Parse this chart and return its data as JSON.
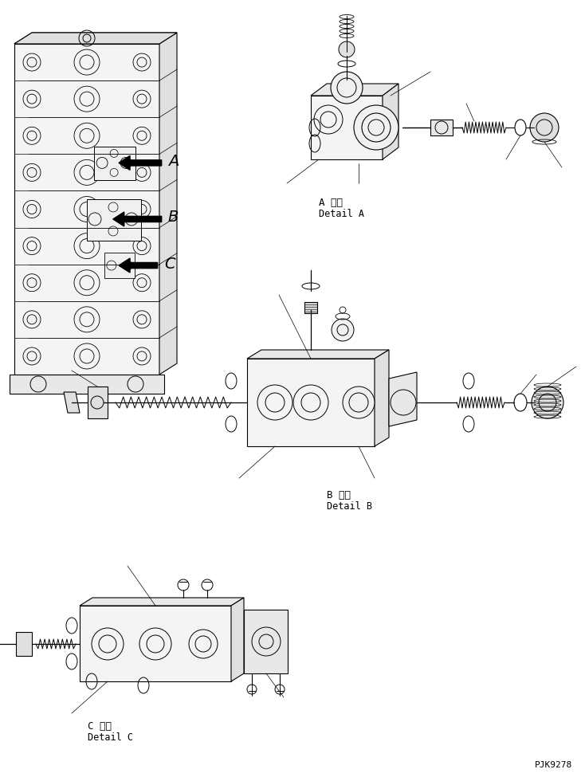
{
  "background_color": "#ffffff",
  "line_color": "#000000",
  "fig_width": 7.29,
  "fig_height": 9.8,
  "dpi": 100,
  "labels": {
    "A_detail_jp": "A 詳細",
    "A_detail_en": "Detail A",
    "B_detail_jp": "B 詳細",
    "B_detail_en": "Detail B",
    "C_detail_jp": "C 詳細",
    "C_detail_en": "Detail C",
    "part_number": "PJK9278",
    "label_A": "A",
    "label_B": "B",
    "label_C": "C"
  }
}
